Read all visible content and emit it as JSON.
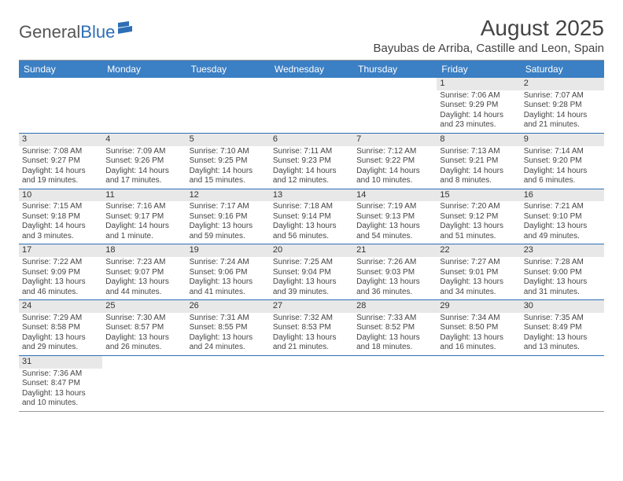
{
  "logo": {
    "part1": "General",
    "part2": "Blue"
  },
  "title": "August 2025",
  "location": "Bayubas de Arriba, Castille and Leon, Spain",
  "day_headers": [
    "Sunday",
    "Monday",
    "Tuesday",
    "Wednesday",
    "Thursday",
    "Friday",
    "Saturday"
  ],
  "header_bg": "#3b7fc4",
  "week_border_color": "#2d6fb5",
  "daynum_bg": "#e8e8e8",
  "weeks": [
    [
      {
        "empty": true
      },
      {
        "empty": true
      },
      {
        "empty": true
      },
      {
        "empty": true
      },
      {
        "empty": true
      },
      {
        "n": "1",
        "rise": "Sunrise: 7:06 AM",
        "set": "Sunset: 9:29 PM",
        "dl1": "Daylight: 14 hours",
        "dl2": "and 23 minutes."
      },
      {
        "n": "2",
        "rise": "Sunrise: 7:07 AM",
        "set": "Sunset: 9:28 PM",
        "dl1": "Daylight: 14 hours",
        "dl2": "and 21 minutes."
      }
    ],
    [
      {
        "n": "3",
        "rise": "Sunrise: 7:08 AM",
        "set": "Sunset: 9:27 PM",
        "dl1": "Daylight: 14 hours",
        "dl2": "and 19 minutes."
      },
      {
        "n": "4",
        "rise": "Sunrise: 7:09 AM",
        "set": "Sunset: 9:26 PM",
        "dl1": "Daylight: 14 hours",
        "dl2": "and 17 minutes."
      },
      {
        "n": "5",
        "rise": "Sunrise: 7:10 AM",
        "set": "Sunset: 9:25 PM",
        "dl1": "Daylight: 14 hours",
        "dl2": "and 15 minutes."
      },
      {
        "n": "6",
        "rise": "Sunrise: 7:11 AM",
        "set": "Sunset: 9:23 PM",
        "dl1": "Daylight: 14 hours",
        "dl2": "and 12 minutes."
      },
      {
        "n": "7",
        "rise": "Sunrise: 7:12 AM",
        "set": "Sunset: 9:22 PM",
        "dl1": "Daylight: 14 hours",
        "dl2": "and 10 minutes."
      },
      {
        "n": "8",
        "rise": "Sunrise: 7:13 AM",
        "set": "Sunset: 9:21 PM",
        "dl1": "Daylight: 14 hours",
        "dl2": "and 8 minutes."
      },
      {
        "n": "9",
        "rise": "Sunrise: 7:14 AM",
        "set": "Sunset: 9:20 PM",
        "dl1": "Daylight: 14 hours",
        "dl2": "and 6 minutes."
      }
    ],
    [
      {
        "n": "10",
        "rise": "Sunrise: 7:15 AM",
        "set": "Sunset: 9:18 PM",
        "dl1": "Daylight: 14 hours",
        "dl2": "and 3 minutes."
      },
      {
        "n": "11",
        "rise": "Sunrise: 7:16 AM",
        "set": "Sunset: 9:17 PM",
        "dl1": "Daylight: 14 hours",
        "dl2": "and 1 minute."
      },
      {
        "n": "12",
        "rise": "Sunrise: 7:17 AM",
        "set": "Sunset: 9:16 PM",
        "dl1": "Daylight: 13 hours",
        "dl2": "and 59 minutes."
      },
      {
        "n": "13",
        "rise": "Sunrise: 7:18 AM",
        "set": "Sunset: 9:14 PM",
        "dl1": "Daylight: 13 hours",
        "dl2": "and 56 minutes."
      },
      {
        "n": "14",
        "rise": "Sunrise: 7:19 AM",
        "set": "Sunset: 9:13 PM",
        "dl1": "Daylight: 13 hours",
        "dl2": "and 54 minutes."
      },
      {
        "n": "15",
        "rise": "Sunrise: 7:20 AM",
        "set": "Sunset: 9:12 PM",
        "dl1": "Daylight: 13 hours",
        "dl2": "and 51 minutes."
      },
      {
        "n": "16",
        "rise": "Sunrise: 7:21 AM",
        "set": "Sunset: 9:10 PM",
        "dl1": "Daylight: 13 hours",
        "dl2": "and 49 minutes."
      }
    ],
    [
      {
        "n": "17",
        "rise": "Sunrise: 7:22 AM",
        "set": "Sunset: 9:09 PM",
        "dl1": "Daylight: 13 hours",
        "dl2": "and 46 minutes."
      },
      {
        "n": "18",
        "rise": "Sunrise: 7:23 AM",
        "set": "Sunset: 9:07 PM",
        "dl1": "Daylight: 13 hours",
        "dl2": "and 44 minutes."
      },
      {
        "n": "19",
        "rise": "Sunrise: 7:24 AM",
        "set": "Sunset: 9:06 PM",
        "dl1": "Daylight: 13 hours",
        "dl2": "and 41 minutes."
      },
      {
        "n": "20",
        "rise": "Sunrise: 7:25 AM",
        "set": "Sunset: 9:04 PM",
        "dl1": "Daylight: 13 hours",
        "dl2": "and 39 minutes."
      },
      {
        "n": "21",
        "rise": "Sunrise: 7:26 AM",
        "set": "Sunset: 9:03 PM",
        "dl1": "Daylight: 13 hours",
        "dl2": "and 36 minutes."
      },
      {
        "n": "22",
        "rise": "Sunrise: 7:27 AM",
        "set": "Sunset: 9:01 PM",
        "dl1": "Daylight: 13 hours",
        "dl2": "and 34 minutes."
      },
      {
        "n": "23",
        "rise": "Sunrise: 7:28 AM",
        "set": "Sunset: 9:00 PM",
        "dl1": "Daylight: 13 hours",
        "dl2": "and 31 minutes."
      }
    ],
    [
      {
        "n": "24",
        "rise": "Sunrise: 7:29 AM",
        "set": "Sunset: 8:58 PM",
        "dl1": "Daylight: 13 hours",
        "dl2": "and 29 minutes."
      },
      {
        "n": "25",
        "rise": "Sunrise: 7:30 AM",
        "set": "Sunset: 8:57 PM",
        "dl1": "Daylight: 13 hours",
        "dl2": "and 26 minutes."
      },
      {
        "n": "26",
        "rise": "Sunrise: 7:31 AM",
        "set": "Sunset: 8:55 PM",
        "dl1": "Daylight: 13 hours",
        "dl2": "and 24 minutes."
      },
      {
        "n": "27",
        "rise": "Sunrise: 7:32 AM",
        "set": "Sunset: 8:53 PM",
        "dl1": "Daylight: 13 hours",
        "dl2": "and 21 minutes."
      },
      {
        "n": "28",
        "rise": "Sunrise: 7:33 AM",
        "set": "Sunset: 8:52 PM",
        "dl1": "Daylight: 13 hours",
        "dl2": "and 18 minutes."
      },
      {
        "n": "29",
        "rise": "Sunrise: 7:34 AM",
        "set": "Sunset: 8:50 PM",
        "dl1": "Daylight: 13 hours",
        "dl2": "and 16 minutes."
      },
      {
        "n": "30",
        "rise": "Sunrise: 7:35 AM",
        "set": "Sunset: 8:49 PM",
        "dl1": "Daylight: 13 hours",
        "dl2": "and 13 minutes."
      }
    ],
    [
      {
        "n": "31",
        "rise": "Sunrise: 7:36 AM",
        "set": "Sunset: 8:47 PM",
        "dl1": "Daylight: 13 hours",
        "dl2": "and 10 minutes."
      },
      {
        "empty": true
      },
      {
        "empty": true
      },
      {
        "empty": true
      },
      {
        "empty": true
      },
      {
        "empty": true
      },
      {
        "empty": true
      }
    ]
  ]
}
